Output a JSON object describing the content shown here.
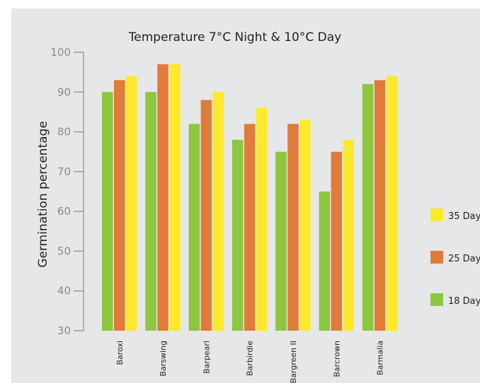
{
  "chart_data": {
    "type": "bar",
    "title": "Temperature 7°C Night & 10°C Day",
    "xlabel": "",
    "ylabel": "Germination percentage",
    "ylim": [
      30,
      100
    ],
    "yticks": [
      30,
      40,
      50,
      60,
      70,
      80,
      90,
      100
    ],
    "grid": false,
    "legend_position": "right",
    "categories": [
      "Baroxi",
      "Barswing",
      "Barpearl",
      "Barbirdie",
      "Bargreen II",
      "Barcrown",
      "Barmalia"
    ],
    "series": [
      {
        "name": "18 Day",
        "color": "#8dc63f",
        "values": [
          90,
          90,
          82,
          78,
          75,
          65,
          92
        ]
      },
      {
        "name": "25 Day",
        "color": "#e07b39",
        "values": [
          93,
          97,
          88,
          82,
          82,
          75,
          93
        ]
      },
      {
        "name": "35 Day",
        "color": "#fde92b",
        "values": [
          94,
          97,
          90,
          86,
          83,
          78,
          94
        ]
      }
    ],
    "legend_order": [
      "35 Day",
      "25 Day",
      "18 Day"
    ]
  }
}
